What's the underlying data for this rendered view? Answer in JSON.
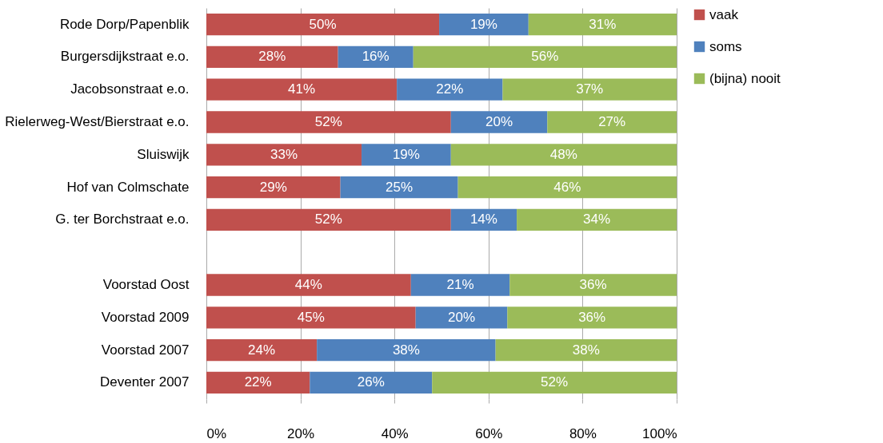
{
  "chart_data": {
    "type": "bar",
    "orientation": "horizontal",
    "stacked": true,
    "categories": [
      "Rode Dorp/Papenblik",
      "Burgersdijkstraat e.o.",
      "Jacobsonstraat e.o.",
      "Rielerweg-West/Bierstraat e.o.",
      "Sluiswijk",
      "Hof van Colmschate",
      "G. ter Borchstraat e.o.",
      null,
      "Voorstad Oost",
      "Voorstad 2009",
      "Voorstad 2007",
      "Deventer 2007"
    ],
    "series": [
      {
        "name": "vaak",
        "color": "#c0504d",
        "values": [
          49.5,
          28,
          40.5,
          52,
          33,
          28.5,
          52,
          null,
          43.5,
          44.5,
          23.5,
          22
        ],
        "value_labels": [
          "50%",
          "28%",
          "41%",
          "52%",
          "33%",
          "29%",
          "52%",
          null,
          "44%",
          "45%",
          "24%",
          "22%"
        ]
      },
      {
        "name": "soms",
        "color": "#4f81bd",
        "values": [
          19,
          16,
          22.5,
          20.5,
          19,
          25,
          14,
          null,
          21,
          19.5,
          38,
          26
        ],
        "value_labels": [
          "19%",
          "16%",
          "22%",
          "20%",
          "19%",
          "25%",
          "14%",
          null,
          "21%",
          "20%",
          "38%",
          "26%"
        ]
      },
      {
        "name": "(bijna) nooit",
        "color": "#9bbb59",
        "values": [
          31.5,
          56,
          37,
          27.5,
          48,
          46.5,
          34,
          null,
          35.5,
          36,
          38.5,
          52
        ],
        "value_labels": [
          "31%",
          "56%",
          "37%",
          "27%",
          "48%",
          "46%",
          "34%",
          null,
          "36%",
          "36%",
          "38%",
          "52%"
        ]
      }
    ],
    "xlim": [
      0,
      100
    ],
    "xticks": [
      {
        "value": 0,
        "label": "0%"
      },
      {
        "value": 20,
        "label": "20%"
      },
      {
        "value": 40,
        "label": "40%"
      },
      {
        "value": 60,
        "label": "60%"
      },
      {
        "value": 80,
        "label": "80%"
      },
      {
        "value": 100,
        "label": "100%"
      }
    ],
    "grid": "x",
    "legend": "right"
  }
}
